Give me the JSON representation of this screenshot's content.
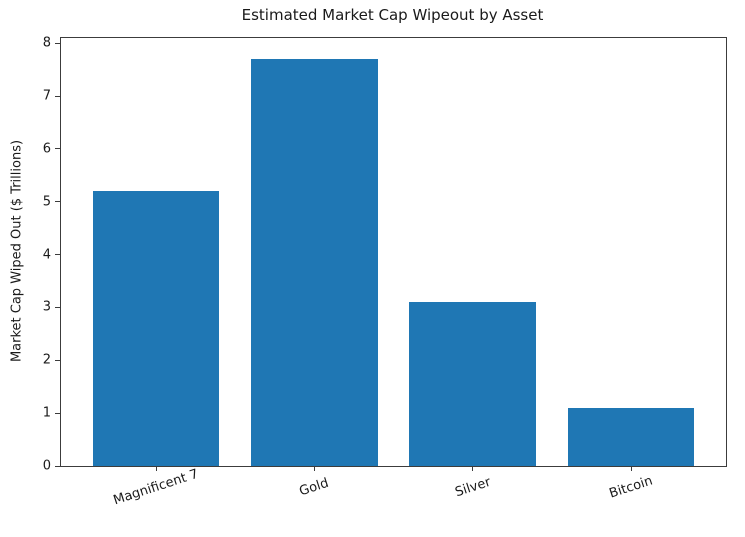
{
  "chart_data": {
    "type": "bar",
    "title": "Estimated Market Cap Wipeout by Asset",
    "categories": [
      "Magnificent 7",
      "Gold",
      "Silver",
      "Bitcoin"
    ],
    "values": [
      5.2,
      7.7,
      3.1,
      1.1
    ],
    "xlabel": "",
    "ylabel": "Market Cap Wiped Out ($ Trillions)",
    "ylim": [
      0,
      8.1
    ],
    "yticks": [
      0,
      1,
      2,
      3,
      4,
      5,
      6,
      7,
      8
    ],
    "bar_color": "#1f77b4",
    "bar_width_fraction": 0.8,
    "x_margin_units": 0.6,
    "x_tick_label_rotation_deg": 18,
    "grid": false,
    "legend": "none",
    "background_color": "#ffffff",
    "spine_color": "#3c3c3c"
  }
}
